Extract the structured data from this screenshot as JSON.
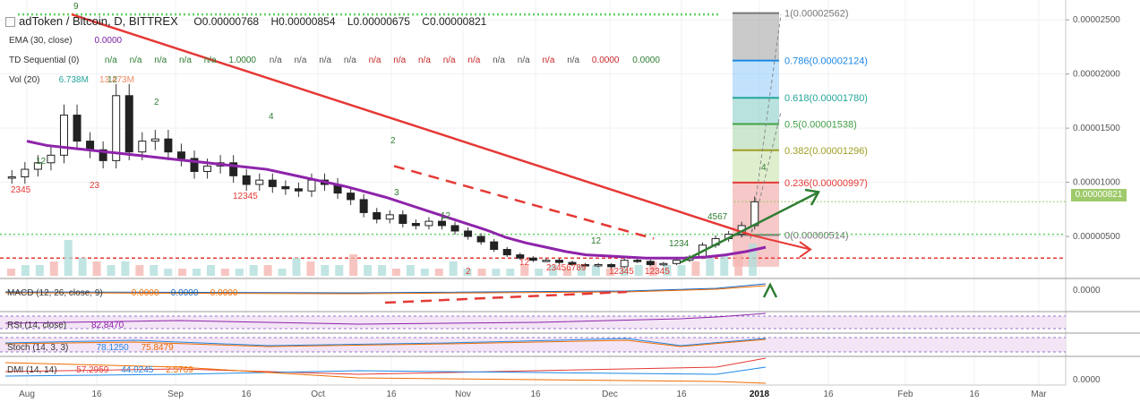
{
  "header": {
    "title": "adToken / Bitcoin, D, BITTREX",
    "ohlc": [
      "O0.00000768",
      "H0.00000854",
      "L0.00000675",
      "C0.00000821"
    ],
    "indicators": [
      {
        "label": "EMA (30, close)",
        "values": [
          {
            "text": "0.0000",
            "color": "#7b1fa2"
          }
        ]
      },
      {
        "label": "TD Sequential (0)",
        "values": [
          {
            "text": "n/a",
            "color": "#2e7d32"
          },
          {
            "text": "n/a",
            "color": "#2e7d32"
          },
          {
            "text": "n/a",
            "color": "#2e7d32"
          },
          {
            "text": "n/a",
            "color": "#2e7d32"
          },
          {
            "text": "n/a",
            "color": "#2e7d32"
          },
          {
            "text": "1.0000",
            "color": "#2e7d32"
          },
          {
            "text": "n/a",
            "color": "#555555"
          },
          {
            "text": "n/a",
            "color": "#555555"
          },
          {
            "text": "n/a",
            "color": "#555555"
          },
          {
            "text": "n/a",
            "color": "#555555"
          },
          {
            "text": "n/a",
            "color": "#c62828"
          },
          {
            "text": "n/a",
            "color": "#c62828"
          },
          {
            "text": "n/a",
            "color": "#c62828"
          },
          {
            "text": "n/a",
            "color": "#c62828"
          },
          {
            "text": "n/a",
            "color": "#c62828"
          },
          {
            "text": "n/a",
            "color": "#555555"
          },
          {
            "text": "n/a",
            "color": "#555555"
          },
          {
            "text": "n/a",
            "color": "#c62828"
          },
          {
            "text": "n/a",
            "color": "#555555"
          },
          {
            "text": "0.0000",
            "color": "#c62828"
          },
          {
            "text": "0.0000",
            "color": "#2e7d32"
          }
        ]
      },
      {
        "label": "Vol (20)",
        "values": [
          {
            "text": "6.738M",
            "color": "#26a69a"
          },
          {
            "text": "13.473M",
            "color": "#ef8a65"
          }
        ]
      }
    ]
  },
  "current_price": "0.00000821",
  "fib_labels": [
    {
      "text": "1(0.00002562)",
      "color": "#777777"
    },
    {
      "text": "0.786(0.00002124)",
      "color": "#1e88e5"
    },
    {
      "text": "0.618(0.00001780)",
      "color": "#26a69a"
    },
    {
      "text": "0.5(0.00001538)",
      "color": "#43a047"
    },
    {
      "text": "0.382(0.00001296)",
      "color": "#9e9d24"
    },
    {
      "text": "0.236(0.00000997)",
      "color": "#e53935"
    },
    {
      "text": "0(0.00000514)",
      "color": "#777777"
    }
  ],
  "panes": {
    "macd": {
      "label": "MACD (12, 26, close, 9)",
      "values": [
        "0.0000",
        "0.0000",
        "0.0000"
      ],
      "axis": "0.0000"
    },
    "rsi": {
      "label": "RSI (14, close)",
      "values": [
        "82.8470"
      ]
    },
    "stoch": {
      "label": "Stoch (14, 3, 3)",
      "values": [
        "78.1250",
        "75.8479"
      ]
    },
    "dmi": {
      "label": "DMI (14, 14)",
      "values": [
        "57.2959",
        "44.0245",
        "2.5769"
      ],
      "axis": "0.0000"
    }
  },
  "chart_data": {
    "type": "candlestick",
    "symbol": "adToken / Bitcoin",
    "interval": "D",
    "exchange": "BITTREX",
    "y_axis_ticks": [
      "0.00002500",
      "0.00002000",
      "0.00001500",
      "0.00001000",
      "0.00000821",
      "0.00000500"
    ],
    "y_range": [
      1.2e-06,
      2.65e-05
    ],
    "x_ticks": [
      "Aug",
      "16",
      "Sep",
      "16",
      "Oct",
      "16",
      "Nov",
      "16",
      "Dec",
      "16",
      "2018",
      "16",
      "Feb",
      "16",
      "Mar"
    ],
    "series_close": [
      1.05e-05,
      1.12e-05,
      1.18e-05,
      1.25e-05,
      1.62e-05,
      1.38e-05,
      1.3e-05,
      1.2e-05,
      1.8e-05,
      1.28e-05,
      1.38e-05,
      1.4e-05,
      1.28e-05,
      1.22e-05,
      1.1e-05,
      1.15e-05,
      1.18e-05,
      1.06e-05,
      9.8e-06,
      1.02e-05,
      9.6e-06,
      9.4e-06,
      9.2e-06,
      1.02e-05,
      9.8e-06,
      9e-06,
      8.4e-06,
      7.2e-06,
      6.6e-06,
      7e-06,
      6.2e-06,
      6e-06,
      6.4e-06,
      6e-06,
      5.5e-06,
      5e-06,
      4.5e-06,
      3.8e-06,
      3.3e-06,
      3e-06,
      2.8e-06,
      2.8e-06,
      2.6e-06,
      2.4e-06,
      2.3e-06,
      2.4e-06,
      2.2e-06,
      2.8e-06,
      2.7e-06,
      2.4e-06,
      2.5e-06,
      2.8e-06,
      3.1e-06,
      4.2e-06,
      4.8e-06,
      5.2e-06,
      6e-06,
      8.2e-06
    ],
    "ema30": [
      1.38e-05,
      1.34e-05,
      1.32e-05,
      1.3e-05,
      1.28e-05,
      1.26e-05,
      1.24e-05,
      1.22e-05,
      1.2e-05,
      1.18e-05,
      1.16e-05,
      1.14e-05,
      1.12e-05,
      1.08e-05,
      1.04e-05,
      1e-05,
      9.6e-06,
      9.1e-06,
      8.6e-06,
      8e-06,
      7.4e-06,
      6.8e-06,
      6.2e-06,
      5.6e-06,
      4.9e-06,
      4.4e-06,
      4e-06,
      3.6e-06,
      3.3e-06,
      3.2e-06,
      3.1e-06,
      3e-06,
      3e-06,
      3e-06,
      3.1e-06,
      3.3e-06,
      3.6e-06,
      4e-06
    ],
    "volume": [
      0.2,
      0.3,
      0.3,
      0.4,
      1.0,
      0.5,
      0.4,
      0.3,
      0.4,
      0.3,
      0.3,
      0.2,
      0.2,
      0.2,
      0.3,
      0.2,
      0.2,
      0.3,
      0.3,
      0.2,
      0.5,
      0.4,
      0.3,
      0.3,
      0.6,
      0.3,
      0.3,
      0.2,
      0.3,
      0.2,
      0.2,
      0.4,
      0.2,
      0.2,
      0.2,
      0.2,
      0.3,
      0.2,
      0.3,
      0.2,
      0.3,
      0.3,
      0.2,
      0.2,
      0.3,
      0.4,
      0.3,
      0.3,
      0.4,
      0.5,
      0.6,
      0.7,
      0.9
    ]
  }
}
